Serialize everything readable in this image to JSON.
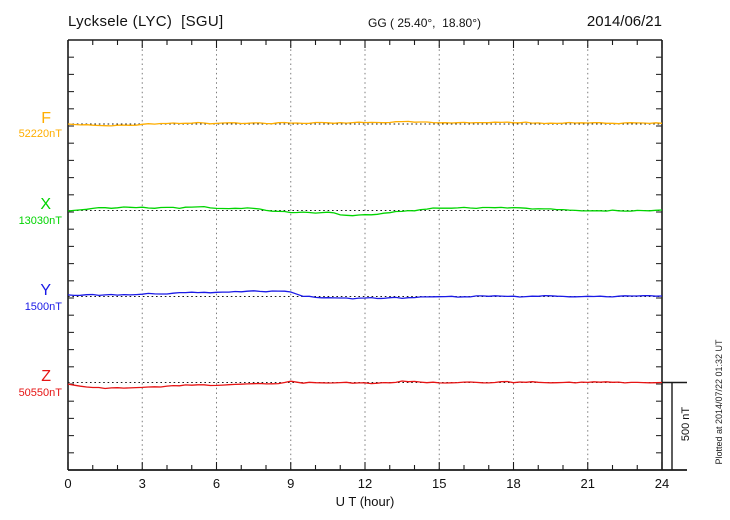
{
  "header": {
    "station_title": "Lycksele (LYC)  [SGU]",
    "coords_label": "GG ( 25.40°,  18.80°)",
    "date": "2014/06/21"
  },
  "axis": {
    "x_label": "U T (hour)",
    "x_ticks": [
      0,
      3,
      6,
      9,
      12,
      15,
      18,
      21,
      24
    ]
  },
  "scalebar": {
    "label": "500 nT",
    "nT": 500
  },
  "footer_note": "Plotted at 2014/07/22 01:32 UT",
  "chart_data": {
    "type": "line",
    "title": "Lycksele (LYC) [SGU] magnetogram, 2014/06/21",
    "xlabel": "U T (hour)",
    "x_range": [
      0,
      24
    ],
    "grid": "dotted vertical gridlines every 3 hours; dotted horizontal baseline per component",
    "legend_position": "left margin (component letter + baseline value)",
    "scale_bar_nT": 500,
    "x": [
      0,
      0.5,
      1,
      1.5,
      2,
      2.5,
      3,
      3.5,
      4,
      4.5,
      5,
      5.5,
      6,
      6.5,
      7,
      7.5,
      8,
      8.5,
      9,
      9.5,
      10,
      10.5,
      11,
      11.5,
      12,
      12.5,
      13,
      13.5,
      14,
      14.5,
      15,
      15.5,
      16,
      16.5,
      17,
      17.5,
      18,
      18.5,
      19,
      19.5,
      20,
      20.5,
      21,
      21.5,
      22,
      22.5,
      23,
      23.5,
      24
    ],
    "series": [
      {
        "name": "F",
        "color": "#FFAE00",
        "baseline_label": "52220nT",
        "baseline_nT": 52220,
        "values": [
          52220,
          52215,
          52211,
          52210,
          52211,
          52213,
          52217,
          52220,
          52223,
          52224,
          52225,
          52224,
          52226,
          52225,
          52225,
          52226,
          52224,
          52226,
          52225,
          52224,
          52227,
          52226,
          52226,
          52227,
          52228,
          52229,
          52230,
          52232,
          52230,
          52229,
          52228,
          52228,
          52229,
          52228,
          52227,
          52228,
          52228,
          52230,
          52228,
          52227,
          52226,
          52226,
          52225,
          52226,
          52225,
          52225,
          52224,
          52224,
          52224
        ]
      },
      {
        "name": "X",
        "color": "#00D400",
        "baseline_label": "13030nT",
        "baseline_nT": 13030,
        "values": [
          13027,
          13036,
          13044,
          13046,
          13047,
          13047,
          13047,
          13044,
          13050,
          13044,
          13047,
          13050,
          13044,
          13039,
          13039,
          13042,
          13030,
          13024,
          13016,
          13018,
          13013,
          13018,
          13004,
          13001,
          13007,
          13010,
          13018,
          13024,
          13030,
          13036,
          13042,
          13044,
          13047,
          13044,
          13047,
          13050,
          13047,
          13044,
          13042,
          13039,
          13036,
          13033,
          13030,
          13030,
          13030,
          13027,
          13030,
          13030,
          13033
        ]
      },
      {
        "name": "Y",
        "color": "#1A1AE6",
        "baseline_label": "1500nT",
        "baseline_nT": 1500,
        "values": [
          1509,
          1509,
          1509,
          1509,
          1509,
          1510,
          1512,
          1514,
          1517,
          1520,
          1523,
          1523,
          1523,
          1526,
          1529,
          1532,
          1529,
          1529,
          1526,
          1500,
          1494,
          1491,
          1491,
          1488,
          1491,
          1488,
          1491,
          1491,
          1494,
          1497,
          1500,
          1500,
          1500,
          1503,
          1503,
          1500,
          1500,
          1500,
          1500,
          1503,
          1503,
          1500,
          1500,
          1500,
          1500,
          1503,
          1503,
          1503,
          1503
        ]
      },
      {
        "name": "Z",
        "color": "#E61414",
        "baseline_label": "50550nT",
        "baseline_nT": 50550,
        "values": [
          50541,
          50530,
          50521,
          50515,
          50518,
          50521,
          50524,
          50527,
          50527,
          50530,
          50533,
          50536,
          50536,
          50538,
          50538,
          50541,
          50541,
          50544,
          50556,
          50547,
          50547,
          50547,
          50547,
          50544,
          50547,
          50547,
          50550,
          50556,
          50559,
          50550,
          50550,
          50547,
          50550,
          50550,
          50550,
          50553,
          50550,
          50550,
          50550,
          50547,
          50550,
          50550,
          50550,
          50550,
          50550,
          50547,
          50550,
          50550,
          50550
        ]
      }
    ]
  }
}
